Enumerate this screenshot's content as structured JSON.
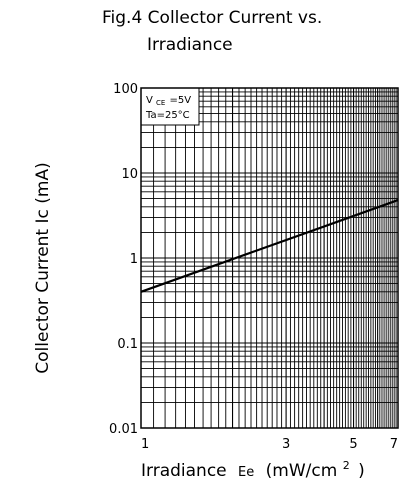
{
  "chart_data": {
    "type": "line",
    "title_line1": "Fig.4  Collector Current vs.",
    "title_line2": "Irradiance",
    "ylabel": "Collector Current Ic  (mA)",
    "xlabel_main": "Irradiance",
    "xlabel_symbol": "Ee",
    "xlabel_unit_open": "(mW/cm",
    "xlabel_unit_sup": "2",
    "xlabel_unit_close": ")",
    "legend": {
      "line1_main": "V",
      "line1_sub": "CE",
      "line1_rest": "=5V",
      "line2": "Ta=25°C"
    },
    "x_scale": "log",
    "y_scale": "log",
    "xlim": [
      1,
      7
    ],
    "ylim": [
      0.01,
      100
    ],
    "x_tick_values": [
      1,
      3,
      5,
      7
    ],
    "x_tick_labels": [
      "1",
      "3",
      "5",
      "7"
    ],
    "y_tick_values": [
      100,
      10,
      1,
      0.1,
      0.01
    ],
    "y_tick_labels": [
      "100",
      "10",
      "1",
      "0.1",
      "0.01"
    ],
    "grid": true,
    "series": [
      {
        "x": [
          1,
          7
        ],
        "y": [
          0.4,
          4.8
        ]
      }
    ]
  }
}
